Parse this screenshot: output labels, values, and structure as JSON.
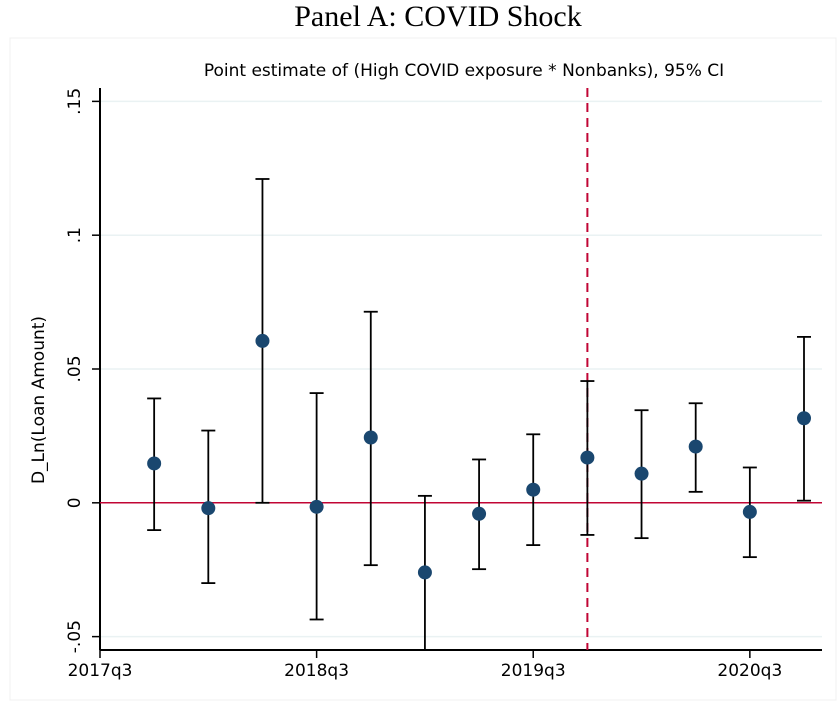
{
  "chart_data": {
    "type": "errorbar",
    "title": "Panel A: COVID Shock",
    "subtitle": "Point estimate of (High COVID exposure * Nonbanks), 95% CI",
    "y_label": "D_Ln(Loan Amount)",
    "x": [
      "2017q4",
      "2018q1",
      "2018q2",
      "2018q3",
      "2018q4",
      "2019q1",
      "2019q2",
      "2019q3",
      "2019q4",
      "2020q1",
      "2020q2",
      "2020q3",
      "2020q4"
    ],
    "series": [
      {
        "color": "#1a476f",
        "values": [
          0.0147,
          -0.002,
          0.0605,
          -0.0015,
          0.0244,
          -0.026,
          -0.0041,
          0.0049,
          0.0169,
          0.0109,
          0.021,
          -0.0034,
          0.0316
        ],
        "lower": [
          -0.0102,
          -0.03,
          0.0,
          -0.0436,
          -0.0233,
          -0.055,
          -0.0248,
          -0.0158,
          -0.012,
          -0.0132,
          0.0041,
          -0.0203,
          0.0008
        ],
        "upper": [
          0.039,
          0.027,
          0.121,
          0.041,
          0.0714,
          0.0026,
          0.0162,
          0.0256,
          0.0455,
          0.0346,
          0.0372,
          0.0132,
          0.062
        ]
      }
    ],
    "xlim": [
      "2017q3",
      "2020q4"
    ],
    "xticks": [
      "2017q3",
      "2018q3",
      "2019q3",
      "2020q3"
    ],
    "ylim": [
      -0.055,
      0.155
    ],
    "yticks": [
      {
        "value": -0.05,
        "label": "-.05"
      },
      0,
      {
        "value": 0.05,
        "label": ".05"
      },
      {
        "value": 0.1,
        "label": ".1"
      },
      {
        "value": 0.15,
        "label": ".15"
      }
    ],
    "grid": true,
    "hline": 0,
    "hline_color": "#c10534",
    "vline": "2019q4",
    "vline_color": "#c10534"
  }
}
